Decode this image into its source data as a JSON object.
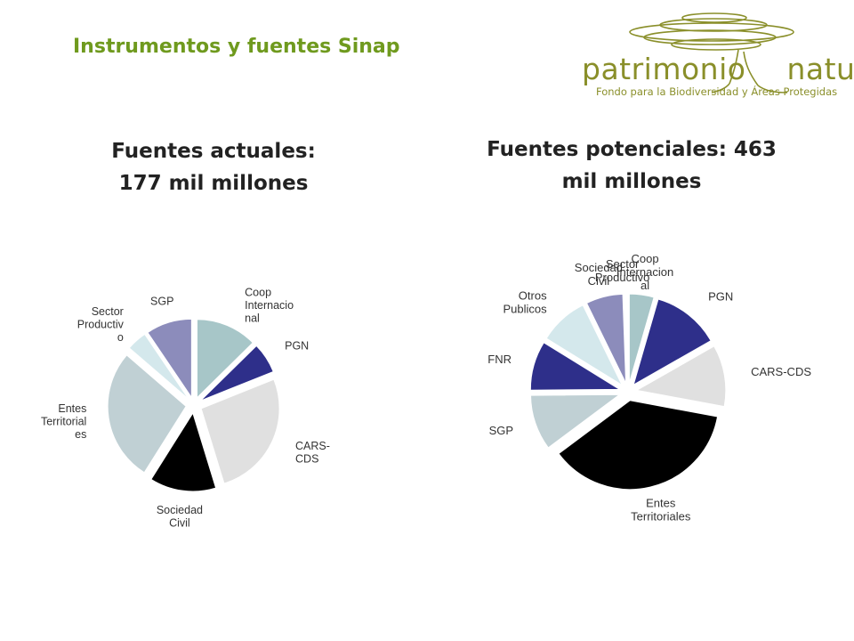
{
  "header": {
    "title": "Instrumentos y fuentes Sinap"
  },
  "logo": {
    "word_left": "patrimonio",
    "word_right": "natural",
    "subtitle": "Fondo para la Biodiversidad y Áreas Protegidas"
  },
  "chart_data": [
    {
      "type": "pie",
      "title_lines": [
        "Fuentes actuales:",
        "177 mil millones"
      ],
      "legend": "none",
      "slices": [
        {
          "name": "Coop Internacional",
          "label_lines": [
            "Coop",
            "Internacio",
            "nal"
          ],
          "value": 12,
          "color": "#a7c6c8"
        },
        {
          "name": "PGN",
          "label_lines": [
            "PGN"
          ],
          "value": 6,
          "color": "#2e2f8a"
        },
        {
          "name": "CARS-CDS",
          "label_lines": [
            "CARS-",
            "CDS"
          ],
          "value": 25,
          "color": "#e0e0e0"
        },
        {
          "name": "Sociedad Civil",
          "label_lines": [
            "Sociedad",
            "Civil"
          ],
          "value": 13,
          "color": "#000000"
        },
        {
          "name": "Entes Territoriales",
          "label_lines": [
            "Entes",
            "Territorial",
            "es"
          ],
          "value": 26,
          "color": "#c0d0d4"
        },
        {
          "name": "Sector Productivo",
          "label_lines": [
            "Sector",
            "Productiv",
            "o"
          ],
          "value": 4,
          "color": "#d4e8ec"
        },
        {
          "name": "SGP",
          "label_lines": [
            "SGP"
          ],
          "value": 9,
          "color": "#8c8cbb"
        }
      ]
    },
    {
      "type": "pie",
      "title_lines": [
        "Fuentes potenciales: 463",
        "mil millones"
      ],
      "legend": "none",
      "slices": [
        {
          "name": "Coop Internacional",
          "label_lines": [
            "Coop",
            "Internacion",
            "al"
          ],
          "value": 4,
          "color": "#a7c6c8"
        },
        {
          "name": "PGN",
          "label_lines": [
            "PGN"
          ],
          "value": 11,
          "color": "#2e2f8a"
        },
        {
          "name": "CARS-CDS",
          "label_lines": [
            "CARS-CDS"
          ],
          "value": 10,
          "color": "#e0e0e0"
        },
        {
          "name": "Entes Territoriales",
          "label_lines": [
            "Entes",
            "Territoriales"
          ],
          "value": 33,
          "color": "#000000"
        },
        {
          "name": "SGP",
          "label_lines": [
            "SGP"
          ],
          "value": 9,
          "color": "#c0d0d4"
        },
        {
          "name": "FNR",
          "label_lines": [
            "FNR"
          ],
          "value": 8,
          "color": "#2e2f8a"
        },
        {
          "name": "Otros Publicos",
          "label_lines": [
            "Otros",
            "Publicos"
          ],
          "value": 8,
          "color": "#d4e8ec"
        },
        {
          "name": "Sociedad Civil",
          "label_lines": [
            "Sociedad",
            "Civil"
          ],
          "value": 6,
          "color": "#8c8cbb"
        },
        {
          "name": "Sector Productivo",
          "label_lines": [
            "Sector",
            "Productivo"
          ],
          "value": 0.5,
          "color": "#ffffff"
        }
      ]
    }
  ]
}
